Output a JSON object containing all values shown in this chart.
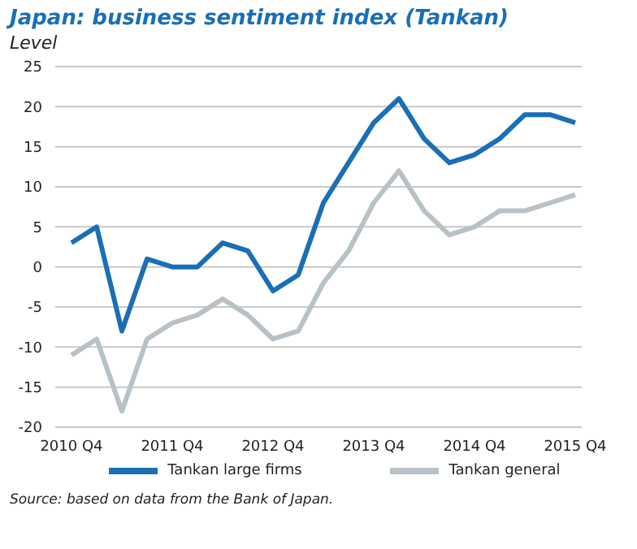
{
  "chart_data": {
    "type": "line",
    "title": "Japan: business sentiment index (Tankan)",
    "ylabel": "Level",
    "categories": [
      "2010 Q4",
      null,
      null,
      null,
      "2011 Q4",
      null,
      null,
      null,
      "2012 Q4",
      null,
      null,
      null,
      "2013 Q4",
      null,
      null,
      null,
      "2014 Q4",
      null,
      null,
      null,
      "2015 Q4"
    ],
    "series": [
      {
        "name": "Tankan large firms",
        "color": "#1a6fb5",
        "values": [
          3,
          5,
          -8,
          1,
          0,
          0,
          3,
          2,
          -3,
          -1,
          8,
          13,
          18,
          21,
          16,
          13,
          14,
          16,
          19,
          19,
          18
        ]
      },
      {
        "name": "Tankan general",
        "color": "#b8c2c6",
        "values": [
          -11,
          -9,
          -18,
          -9,
          -7,
          -6,
          -4,
          -6,
          -9,
          -8,
          -2,
          2,
          8,
          12,
          7,
          4,
          5,
          7,
          7,
          8,
          9
        ]
      }
    ],
    "ylim": [
      -20,
      25
    ],
    "yticks": [
      -20,
      -15,
      -10,
      -5,
      0,
      5,
      10,
      15,
      20,
      25
    ],
    "grid": "y",
    "legend": "bottom",
    "marker": "none",
    "line_style": "solid",
    "annotations": [
      "Source: based on data from the Bank of Japan."
    ]
  }
}
